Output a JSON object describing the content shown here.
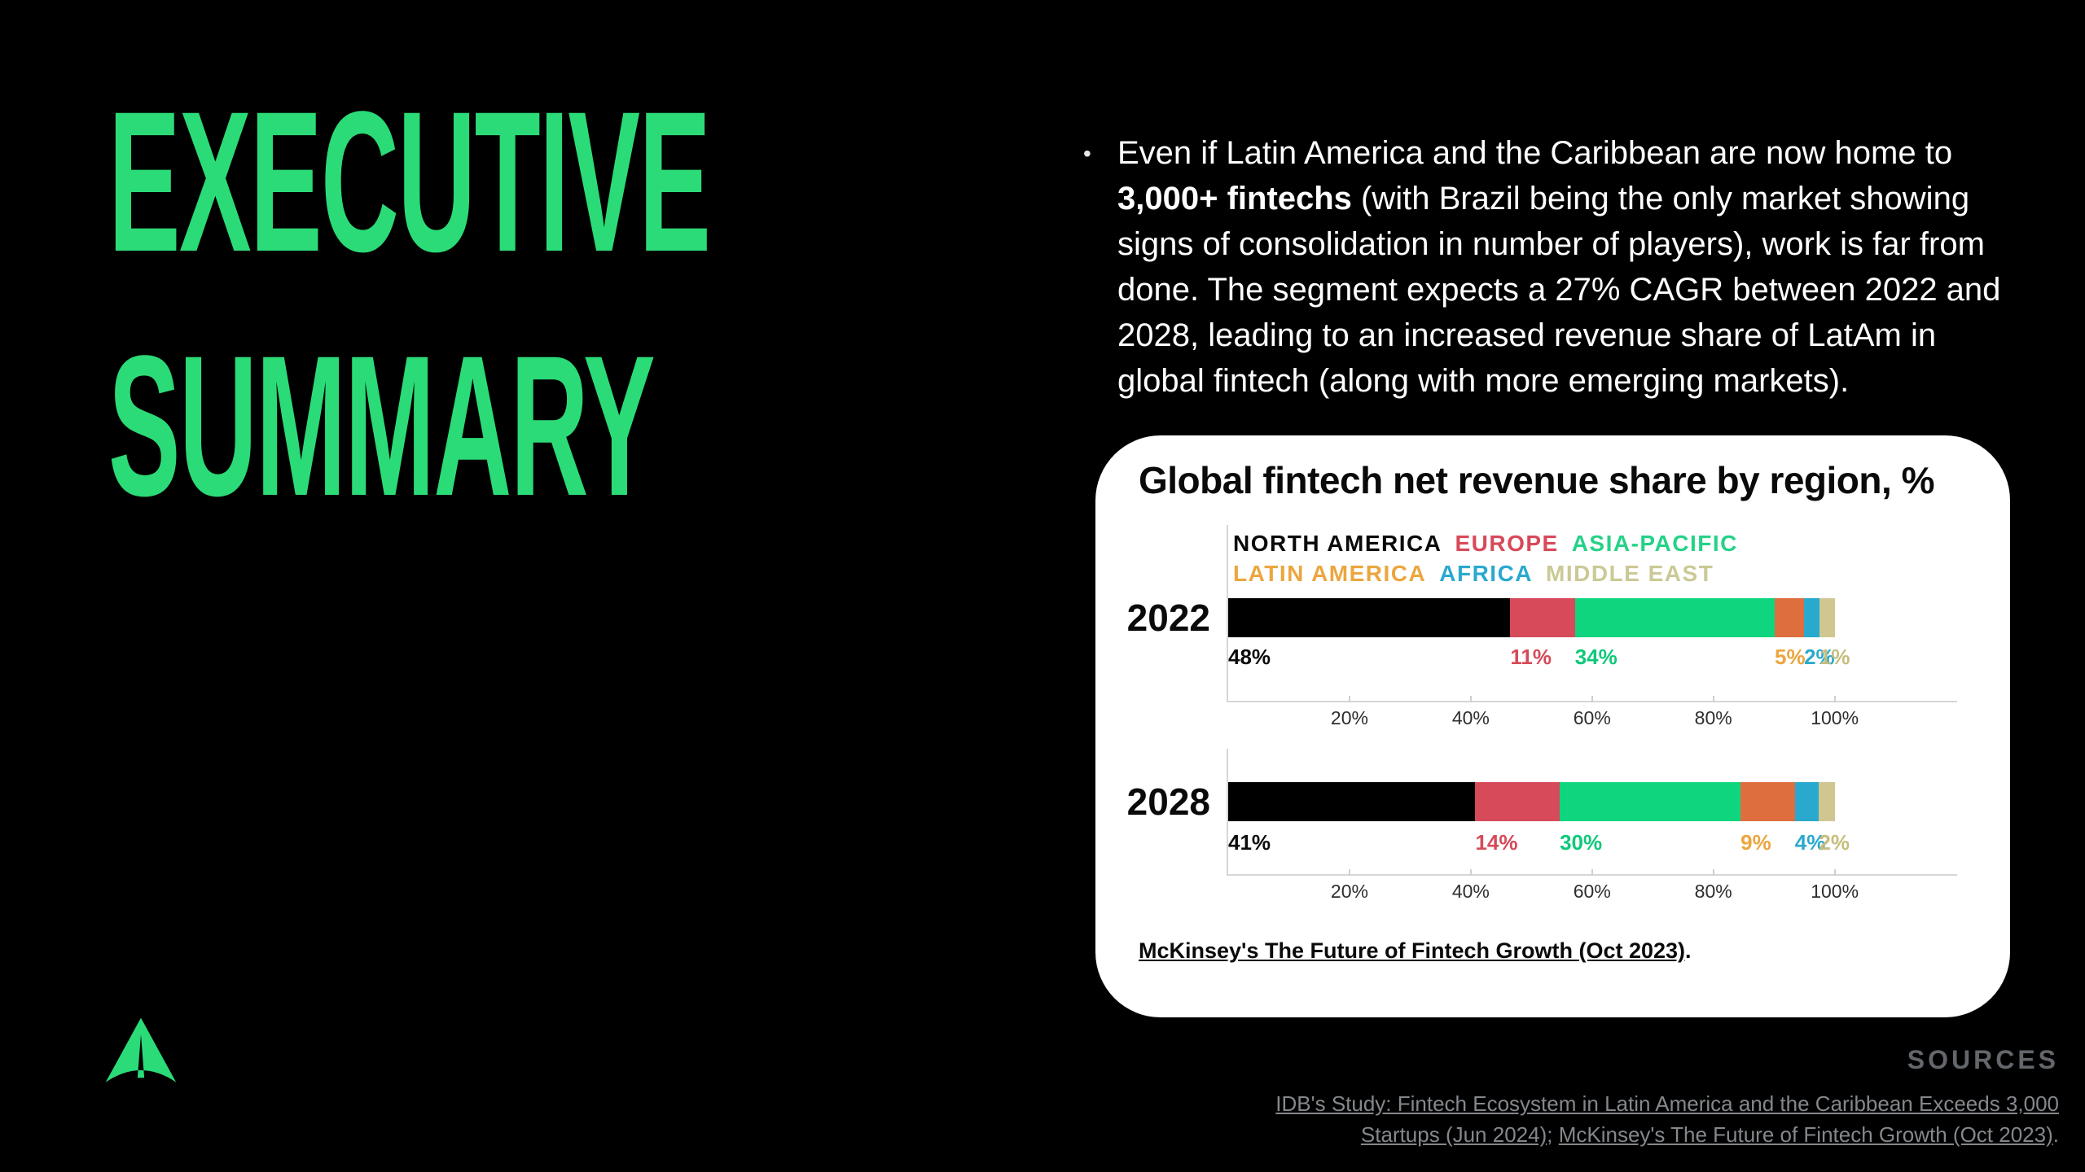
{
  "slide": {
    "title_lines": [
      "EXECUTIVE",
      "SUMMARY"
    ],
    "accent_color": "#2BDB77",
    "bullet": {
      "marker": "•",
      "lines": [
        {
          "pre": "Even if Latin America and the Caribbean are now home to"
        },
        {
          "bold": "3,000+ fintechs",
          "post": " (with Brazil being the only market showing"
        },
        {
          "pre": "signs of consolidation in number of players), work is far from"
        },
        {
          "pre": "done. The segment expects a 27% CAGR between 2022 and"
        },
        {
          "pre": "2028, leading to an increased revenue share of LatAm in"
        },
        {
          "pre": "global fintech (along with more emerging markets)."
        }
      ]
    }
  },
  "card": {
    "title": "Global fintech net revenue share by region, %",
    "source_link": "McKinsey's The Future of Fintech Growth (Oct 2023)",
    "source_suffix": "."
  },
  "chart_data": {
    "type": "bar",
    "stacked": true,
    "orientation": "horizontal",
    "title": "Global fintech net revenue share by region, %",
    "categories": [
      "2022",
      "2028"
    ],
    "series": [
      {
        "name": "NORTH AMERICA",
        "color": "#000000",
        "legend_color": "#0a0a0a",
        "label_color": "#0b0b0b",
        "values": [
          48,
          41
        ]
      },
      {
        "name": "EUROPE",
        "color": "#D64A5A",
        "legend_color": "#D64A5A",
        "label_color": "#D64A5A",
        "values": [
          11,
          14
        ]
      },
      {
        "name": "ASIA-PACIFIC",
        "color": "#0FD67E",
        "legend_color": "#25D287",
        "label_color": "#0FC97A",
        "values": [
          34,
          30
        ]
      },
      {
        "name": "LATIN AMERICA",
        "color": "#DE6E3E",
        "legend_color": "#EBA63F",
        "label_color": "#EBA63F",
        "values": [
          5,
          9
        ]
      },
      {
        "name": "AFRICA",
        "color": "#29A9CE",
        "legend_color": "#2BA9CE",
        "label_color": "#2BA9CE",
        "values": [
          2,
          4
        ]
      },
      {
        "name": "MIDDLE EAST",
        "color": "#CFC78F",
        "legend_color": "#CBC995",
        "label_color": "#C5BE7E",
        "values": [
          1,
          2
        ]
      }
    ],
    "value_suffix": "%",
    "value_labels": [
      [
        "48%",
        "11%",
        "34%",
        "5%",
        "2%",
        "1%"
      ],
      [
        "41%",
        "14%",
        "30%",
        "9%",
        "4%",
        "2%"
      ]
    ],
    "x_ticks": [
      "20%",
      "40%",
      "60%",
      "80%",
      "100%"
    ],
    "x_tick_values": [
      20,
      40,
      60,
      80,
      100
    ],
    "xlim": [
      0,
      120
    ],
    "grid": false,
    "legend_position": "top-left-inside-plot"
  },
  "footer": {
    "sources_label": "SOURCES",
    "sources": [
      {
        "text": "IDB's Study: Fintech Ecosystem in Latin America and the Caribbean Exceeds 3,000 Startups (Jun 2024)"
      },
      {
        "text": "McKinsey's The Future of Fintech Growth (Oct 2023)"
      }
    ],
    "separator": "; ",
    "terminator": "."
  }
}
